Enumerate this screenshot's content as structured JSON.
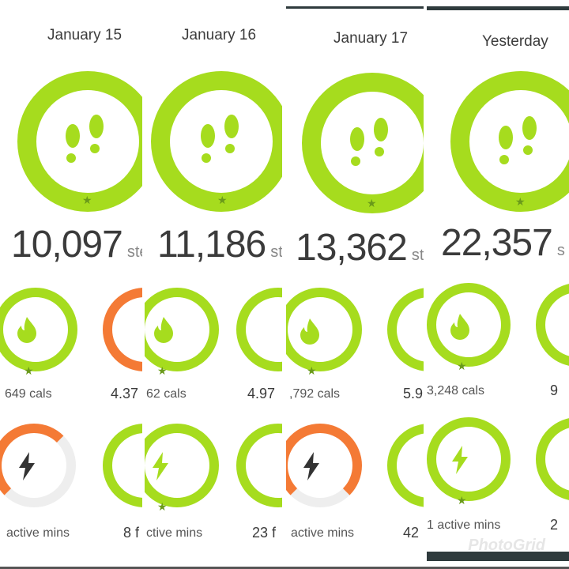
{
  "panels": [
    {
      "date": "January 15",
      "steps": "10,097",
      "steps_unit": "ste",
      "cals": "649 cals",
      "dist": "4.37",
      "active": "active mins",
      "floors": "8 f"
    },
    {
      "date": "January 16",
      "steps": "11,186",
      "steps_unit": "steps",
      "cals": "62 cals",
      "dist": "4.97",
      "active": "ctive mins",
      "floors": "23 f"
    },
    {
      "date": "January 17",
      "steps": "13,362",
      "steps_unit": "st",
      "cals": ",792 cals",
      "dist": "5.9",
      "active": "active mins",
      "floors": "42"
    },
    {
      "date": "Yesterday",
      "steps": "22,357",
      "steps_unit": "s",
      "cals": "3,248 cals",
      "dist": "9",
      "active": "1 active mins",
      "floors": "2"
    }
  ],
  "watermark": "PhotoGrid",
  "colors": {
    "green": "#a6dc1e",
    "orange": "#f47a35",
    "text": "#3b3b3b",
    "bar": "#2f3b3d"
  },
  "icons": {
    "steps": "footprints-icon",
    "cals": "flame-icon",
    "active": "lightning-icon",
    "floors": "stairs-icon",
    "goal": "star-icon"
  }
}
